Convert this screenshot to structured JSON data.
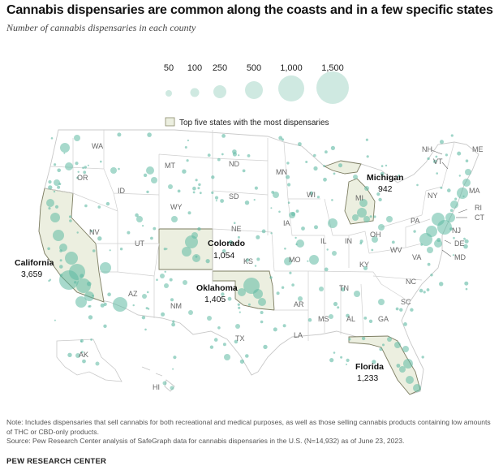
{
  "title": "Cannabis dispensaries are common along the coasts and in a few specific states",
  "subtitle": "Number of cannabis dispensaries in each county",
  "colors": {
    "bubble": "#5fb9a3",
    "highlight_fill": "#ecefe0",
    "border": "#c8c8c8"
  },
  "size_legend": [
    {
      "label": "50",
      "value": 50
    },
    {
      "label": "100",
      "value": 100
    },
    {
      "label": "250",
      "value": 250
    },
    {
      "label": "500",
      "value": 500
    },
    {
      "label": "1,000",
      "value": 1000
    },
    {
      "label": "1,500",
      "value": 1500
    }
  ],
  "highlight_legend": "Top five states with the most dispensaries",
  "callouts": [
    {
      "state": "California",
      "value": "3,659"
    },
    {
      "state": "Oklahoma",
      "value": "1,405"
    },
    {
      "state": "Florida",
      "value": "1,233"
    },
    {
      "state": "Colorado",
      "value": "1,054"
    },
    {
      "state": "Michigan",
      "value": "942"
    }
  ],
  "state_labels": [
    "WA",
    "OR",
    "ID",
    "MT",
    "WY",
    "ND",
    "SD",
    "NE",
    "MN",
    "WI",
    "IA",
    "NV",
    "UT",
    "AZ",
    "NM",
    "KS",
    "MO",
    "IL",
    "IN",
    "OH",
    "MI",
    "PA",
    "NY",
    "NH",
    "VT",
    "ME",
    "MA",
    "RI",
    "CT",
    "NJ",
    "DE",
    "MD",
    "WV",
    "VA",
    "KY",
    "TN",
    "NC",
    "SC",
    "GA",
    "AL",
    "MS",
    "AR",
    "LA",
    "TX",
    "AK",
    "HI"
  ],
  "note": "Note: Includes dispensaries that sell cannabis for both recreational and medical purposes, as well as those selling cannabis products containing low amounts of THC or CBD-only products.",
  "source": "Source: Pew Research Center analysis of SafeGraph data for cannabis dispensaries in the U.S. (N=14,932) as of June 23, 2023.",
  "brand": "PEW RESEARCH CENTER"
}
